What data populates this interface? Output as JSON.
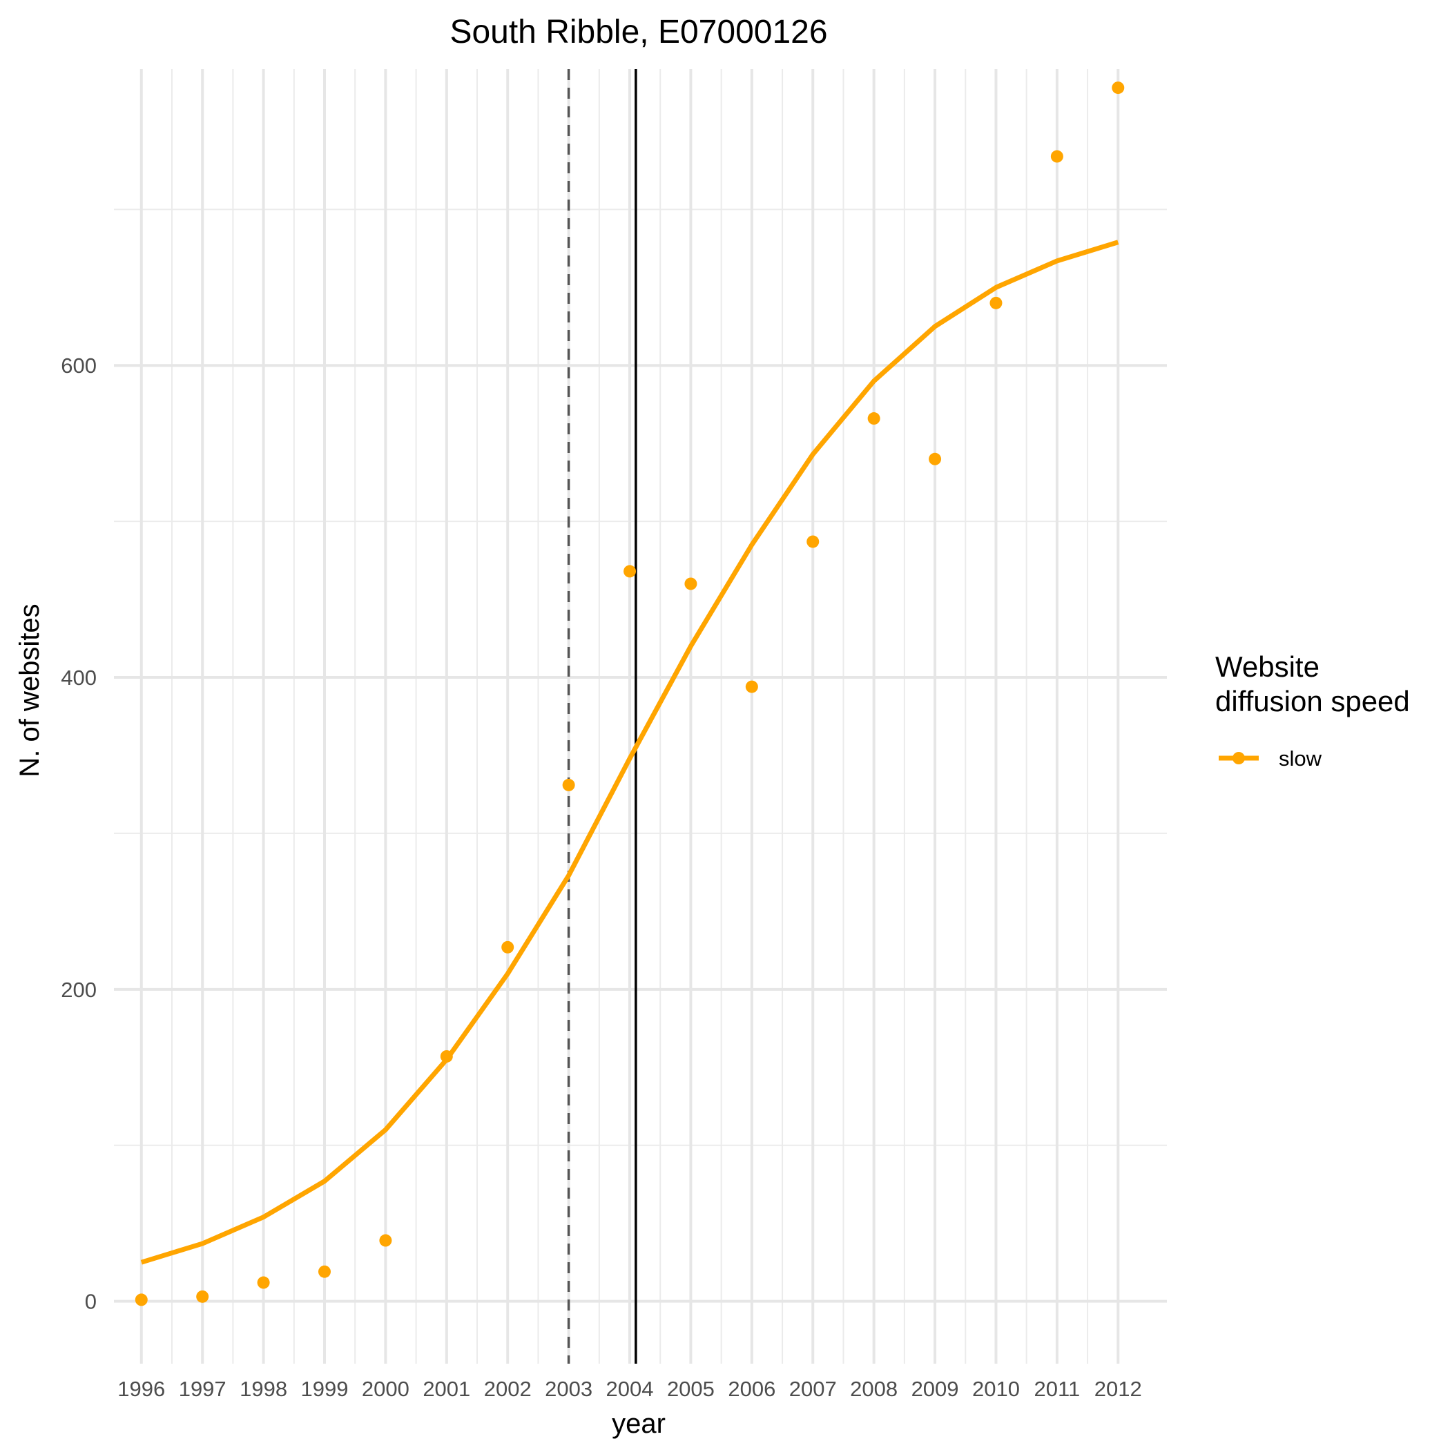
{
  "chart_data": {
    "type": "line",
    "title": "South Ribble, E07000126",
    "xlabel": "year",
    "ylabel": "N. of websites",
    "x": [
      1996,
      1997,
      1998,
      1999,
      2000,
      2001,
      2002,
      2003,
      2004,
      2005,
      2006,
      2007,
      2008,
      2009,
      2010,
      2011,
      2012
    ],
    "x_tick_labels": [
      "1996",
      "1997",
      "1998",
      "1999",
      "2000",
      "2001",
      "2002",
      "2003",
      "2004",
      "2005",
      "2006",
      "2007",
      "2008",
      "2009",
      "2010",
      "2011",
      "2012"
    ],
    "y_ticks": [
      0,
      200,
      400,
      600
    ],
    "y_tick_labels": [
      "0",
      "200",
      "400",
      "600"
    ],
    "xlim": [
      1995.55,
      2012.8
    ],
    "ylim": [
      -40,
      790
    ],
    "series": [
      {
        "name": "slow",
        "color": "#FFA500",
        "points": [
          1,
          3,
          12,
          19,
          39,
          157,
          227,
          331,
          468,
          460,
          394,
          487,
          566,
          540,
          640,
          734,
          778
        ],
        "fitted": [
          25,
          37,
          54,
          77,
          110,
          155,
          210,
          273,
          348,
          420,
          485,
          543,
          590,
          625,
          650,
          667,
          679
        ]
      }
    ],
    "vlines": [
      {
        "x": 2003,
        "style": "dashed",
        "color": "#555555"
      },
      {
        "x": 2004.1,
        "style": "solid",
        "color": "#000000"
      }
    ],
    "grid": true,
    "legend": {
      "title_lines": [
        "Website",
        "diffusion speed"
      ],
      "position": "right"
    }
  }
}
